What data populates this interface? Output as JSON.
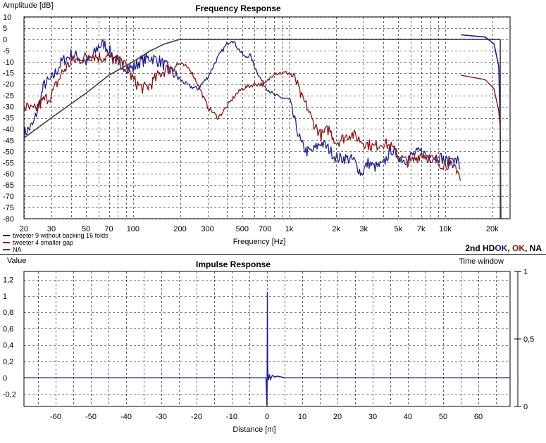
{
  "chart_data": [
    {
      "type": "line",
      "title": "Frequency Response",
      "ylabel": "Amplitude [dB]",
      "xlabel": "Frequency [Hz]",
      "x_scale": "log",
      "xlim": [
        20,
        26000
      ],
      "ylim": [
        -80,
        10
      ],
      "y_ticks": [
        10,
        5,
        0,
        -5,
        -10,
        -15,
        -20,
        -25,
        -30,
        -35,
        -40,
        -45,
        -50,
        -55,
        -60,
        -65,
        -70,
        -75,
        -80
      ],
      "x_ticks": [
        20,
        30,
        50,
        70,
        100,
        200,
        300,
        500,
        700,
        1000,
        2000,
        3000,
        5000,
        7000,
        10000,
        20000
      ],
      "x_tick_labels": [
        "20",
        "30",
        "50",
        "70",
        "100",
        "200",
        "300",
        "500",
        "700",
        "1k",
        "2k",
        "3k",
        "5k",
        "7k",
        "10k",
        "20k"
      ],
      "grid": true,
      "legend_position": "bottom-left",
      "status": {
        "prefix": "2nd HD",
        "items": [
          {
            "text": "OK",
            "color": "#1c1c8c"
          },
          {
            "text": ", ",
            "color": "#000000"
          },
          {
            "text": "OK",
            "color": "#8c1414"
          },
          {
            "text": ", NA",
            "color": "#000000"
          }
        ]
      },
      "series": [
        {
          "name": "tweeter 9 without backing 16 folds",
          "color": "#1c1c8c",
          "points": [
            [
              20,
              -42
            ],
            [
              23,
              -38
            ],
            [
              27,
              -20
            ],
            [
              30,
              -18
            ],
            [
              35,
              -10
            ],
            [
              40,
              -7
            ],
            [
              45,
              -8
            ],
            [
              50,
              -10
            ],
            [
              55,
              -8
            ],
            [
              60,
              -3
            ],
            [
              65,
              -2
            ],
            [
              70,
              -5
            ],
            [
              80,
              -10
            ],
            [
              90,
              -12
            ],
            [
              100,
              -13
            ],
            [
              110,
              -10
            ],
            [
              130,
              -8
            ],
            [
              150,
              -10
            ],
            [
              180,
              -15
            ],
            [
              200,
              -18
            ],
            [
              230,
              -21
            ],
            [
              260,
              -22
            ],
            [
              300,
              -17
            ],
            [
              350,
              -8
            ],
            [
              400,
              -2
            ],
            [
              430,
              0
            ],
            [
              470,
              -4
            ],
            [
              520,
              -8
            ],
            [
              560,
              -7
            ],
            [
              600,
              -12
            ],
            [
              650,
              -17
            ],
            [
              700,
              -21
            ],
            [
              750,
              -23
            ],
            [
              800,
              -25
            ],
            [
              900,
              -26
            ],
            [
              1000,
              -27
            ],
            [
              1100,
              -38
            ],
            [
              1200,
              -47
            ],
            [
              1300,
              -50
            ],
            [
              1400,
              -50
            ],
            [
              1600,
              -46
            ],
            [
              1800,
              -49
            ],
            [
              2000,
              -53
            ],
            [
              2300,
              -53
            ],
            [
              2600,
              -54
            ],
            [
              2900,
              -60
            ],
            [
              3200,
              -55
            ],
            [
              3500,
              -57
            ],
            [
              4000,
              -56
            ],
            [
              4500,
              -49
            ],
            [
              5000,
              -52
            ],
            [
              5500,
              -54
            ],
            [
              6000,
              -52
            ],
            [
              7000,
              -50
            ],
            [
              8000,
              -53
            ],
            [
              9000,
              -52
            ],
            [
              10000,
              -54
            ],
            [
              11000,
              -55
            ],
            [
              12000,
              -54
            ],
            [
              12500,
              -58
            ]
          ]
        },
        {
          "name": "tweeter 4 smaller gap",
          "color": "#8c1414",
          "points": [
            [
              20,
              -30
            ],
            [
              23,
              -32
            ],
            [
              27,
              -27
            ],
            [
              30,
              -25
            ],
            [
              35,
              -15
            ],
            [
              40,
              -10
            ],
            [
              45,
              -9
            ],
            [
              50,
              -8
            ],
            [
              55,
              -7
            ],
            [
              60,
              -8
            ],
            [
              70,
              -8
            ],
            [
              80,
              -10
            ],
            [
              90,
              -12
            ],
            [
              100,
              -18
            ],
            [
              110,
              -21
            ],
            [
              120,
              -22
            ],
            [
              130,
              -20
            ],
            [
              150,
              -15
            ],
            [
              180,
              -12
            ],
            [
              200,
              -11
            ],
            [
              230,
              -13
            ],
            [
              260,
              -20
            ],
            [
              300,
              -30
            ],
            [
              350,
              -35
            ],
            [
              400,
              -30
            ],
            [
              450,
              -25
            ],
            [
              500,
              -22
            ],
            [
              550,
              -21
            ],
            [
              600,
              -20
            ],
            [
              700,
              -20
            ],
            [
              800,
              -15
            ],
            [
              900,
              -15
            ],
            [
              1000,
              -15
            ],
            [
              1100,
              -18
            ],
            [
              1200,
              -26
            ],
            [
              1300,
              -30
            ],
            [
              1400,
              -36
            ],
            [
              1600,
              -43
            ],
            [
              1800,
              -40
            ],
            [
              2000,
              -46
            ],
            [
              2500,
              -42
            ],
            [
              3000,
              -46
            ],
            [
              3500,
              -48
            ],
            [
              4000,
              -46
            ],
            [
              4500,
              -48
            ],
            [
              5000,
              -52
            ],
            [
              5500,
              -54
            ],
            [
              6000,
              -55
            ],
            [
              7000,
              -51
            ],
            [
              8000,
              -53
            ],
            [
              9000,
              -55
            ],
            [
              10000,
              -56
            ],
            [
              11000,
              -55
            ],
            [
              12000,
              -58
            ],
            [
              12500,
              -63
            ]
          ]
        },
        {
          "name": "NA",
          "color": "#404040",
          "points": [
            [
              20,
              -44
            ],
            [
              30,
              -35
            ],
            [
              50,
              -24
            ],
            [
              70,
              -16
            ],
            [
              100,
              -10
            ],
            [
              130,
              -5
            ],
            [
              160,
              -2
            ],
            [
              200,
              0
            ],
            [
              22500,
              0
            ]
          ]
        }
      ]
    },
    {
      "type": "line",
      "title": "Impulse Response",
      "ylabel": "Value",
      "xlabel": "Distance [m]",
      "secondary_ylabel": "Time window",
      "xlim": [
        -69,
        69
      ],
      "ylim": [
        -0.35,
        1.3
      ],
      "y_ticks": [
        1.2,
        1,
        0.8,
        0.6,
        0.4,
        0.2,
        0,
        -0.2
      ],
      "y_tick_labels": [
        "1,2",
        "1",
        "0,8",
        "0,6",
        "0,4",
        "0,2",
        "0",
        "-0,2"
      ],
      "x_ticks": [
        -60,
        -50,
        -40,
        -30,
        -20,
        -10,
        0,
        10,
        20,
        30,
        40,
        50,
        60
      ],
      "x_tick_labels": [
        "-60",
        "-50",
        "-40",
        "-30",
        "-20",
        "-10",
        "0",
        "10",
        "20",
        "30",
        "40",
        "50",
        "60"
      ],
      "secondary_y_ticks": [
        1,
        0.5,
        0
      ],
      "secondary_y_tick_labels": [
        "1",
        "0,5",
        "0"
      ],
      "grid": true,
      "series": [
        {
          "name": "impulse",
          "color": "#1c1c8c",
          "points": [
            [
              -69,
              0
            ],
            [
              -0.3,
              0
            ],
            [
              0,
              -0.35
            ],
            [
              0.1,
              1.05
            ],
            [
              0.2,
              0.1
            ],
            [
              0.4,
              -0.03
            ],
            [
              0.7,
              0.04
            ],
            [
              1.0,
              -0.02
            ],
            [
              1.5,
              0.03
            ],
            [
              2.2,
              0.01
            ],
            [
              3,
              0.02
            ],
            [
              4,
              0.01
            ],
            [
              5,
              0
            ],
            [
              69,
              0
            ]
          ]
        }
      ]
    }
  ]
}
